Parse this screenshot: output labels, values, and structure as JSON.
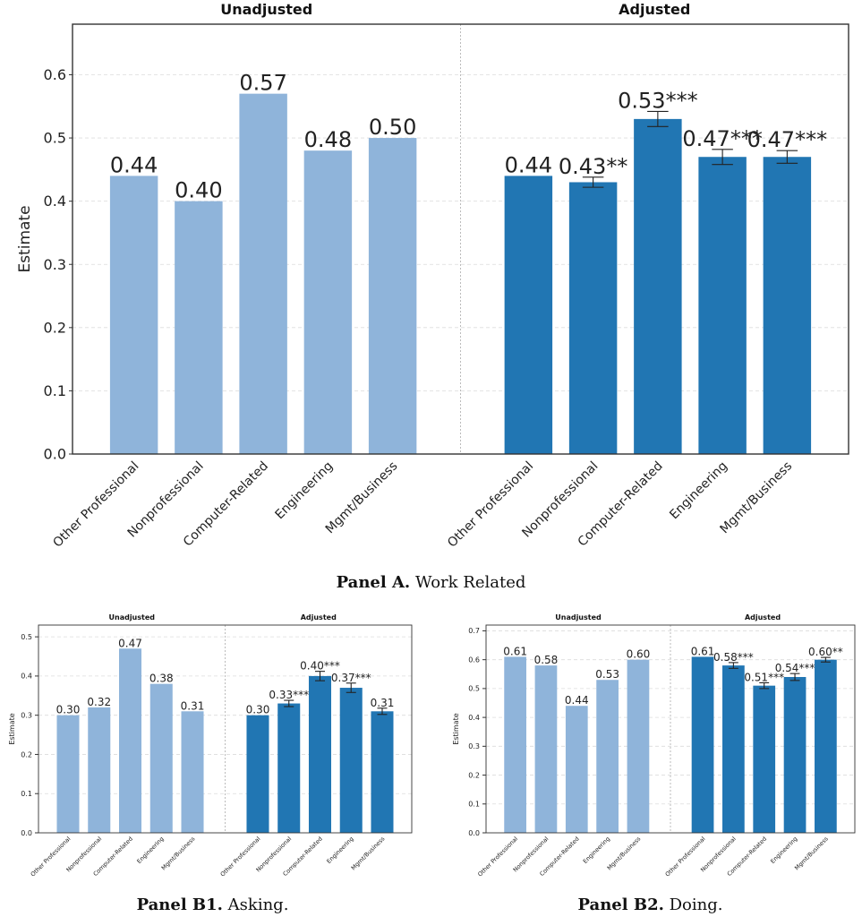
{
  "captions": {
    "a": {
      "label": "Panel A.",
      "text": "Work Related"
    },
    "b1": {
      "label": "Panel B1.",
      "text": "Asking."
    },
    "b2": {
      "label": "Panel B2.",
      "text": "Doing."
    }
  },
  "colors": {
    "unadjusted": "#8fb4da",
    "adjusted": "#2176b3"
  },
  "chart_data": [
    {
      "id": "panel-a",
      "type": "bar",
      "ylabel": "Estimate",
      "ylim": [
        0,
        0.68
      ],
      "yticks": [
        "0.0",
        "0.1",
        "0.2",
        "0.3",
        "0.4",
        "0.5",
        "0.6"
      ],
      "grid": true,
      "categories": [
        "Other Professional",
        "Nonprofessional",
        "Computer-Related",
        "Engineering",
        "Mgmt/Business"
      ],
      "series": [
        {
          "name": "Unadjusted",
          "values": [
            0.44,
            0.4,
            0.57,
            0.48,
            0.5
          ],
          "labels": [
            "0.44",
            "0.40",
            "0.57",
            "0.48",
            "0.50"
          ],
          "errors": null
        },
        {
          "name": "Adjusted",
          "values": [
            0.44,
            0.43,
            0.53,
            0.47,
            0.47
          ],
          "labels": [
            "0.44",
            "0.43**",
            "0.53***",
            "0.47***",
            "0.47***"
          ],
          "errors": [
            null,
            0.008,
            0.012,
            0.012,
            0.01
          ]
        }
      ]
    },
    {
      "id": "panel-b1",
      "type": "bar",
      "ylabel": "Estimate",
      "ylim": [
        0,
        0.53
      ],
      "yticks": [
        "0.0",
        "0.1",
        "0.2",
        "0.3",
        "0.4",
        "0.5"
      ],
      "grid": true,
      "categories": [
        "Other Professional",
        "Nonprofessional",
        "Computer-Related",
        "Engineering",
        "Mgmt/Business"
      ],
      "series": [
        {
          "name": "Unadjusted",
          "values": [
            0.3,
            0.32,
            0.47,
            0.38,
            0.31
          ],
          "labels": [
            "0.30",
            "0.32",
            "0.47",
            "0.38",
            "0.31"
          ],
          "errors": null
        },
        {
          "name": "Adjusted",
          "values": [
            0.3,
            0.33,
            0.4,
            0.37,
            0.31
          ],
          "labels": [
            "0.30",
            "0.33***",
            "0.40***",
            "0.37***",
            "0.31"
          ],
          "errors": [
            null,
            0.008,
            0.012,
            0.012,
            0.008
          ]
        }
      ]
    },
    {
      "id": "panel-b2",
      "type": "bar",
      "ylabel": "Estimate",
      "ylim": [
        0,
        0.72
      ],
      "yticks": [
        "0.0",
        "0.1",
        "0.2",
        "0.3",
        "0.4",
        "0.5",
        "0.6",
        "0.7"
      ],
      "grid": true,
      "categories": [
        "Other Professional",
        "Nonprofessional",
        "Computer-Related",
        "Engineering",
        "Mgmt/Business"
      ],
      "series": [
        {
          "name": "Unadjusted",
          "values": [
            0.61,
            0.58,
            0.44,
            0.53,
            0.6
          ],
          "labels": [
            "0.61",
            "0.58",
            "0.44",
            "0.53",
            "0.60"
          ],
          "errors": null
        },
        {
          "name": "Adjusted",
          "values": [
            0.61,
            0.58,
            0.51,
            0.54,
            0.6
          ],
          "labels": [
            "0.61",
            "0.58***",
            "0.51***",
            "0.54***",
            "0.60**"
          ],
          "errors": [
            null,
            0.01,
            0.01,
            0.012,
            0.008
          ]
        }
      ]
    }
  ]
}
